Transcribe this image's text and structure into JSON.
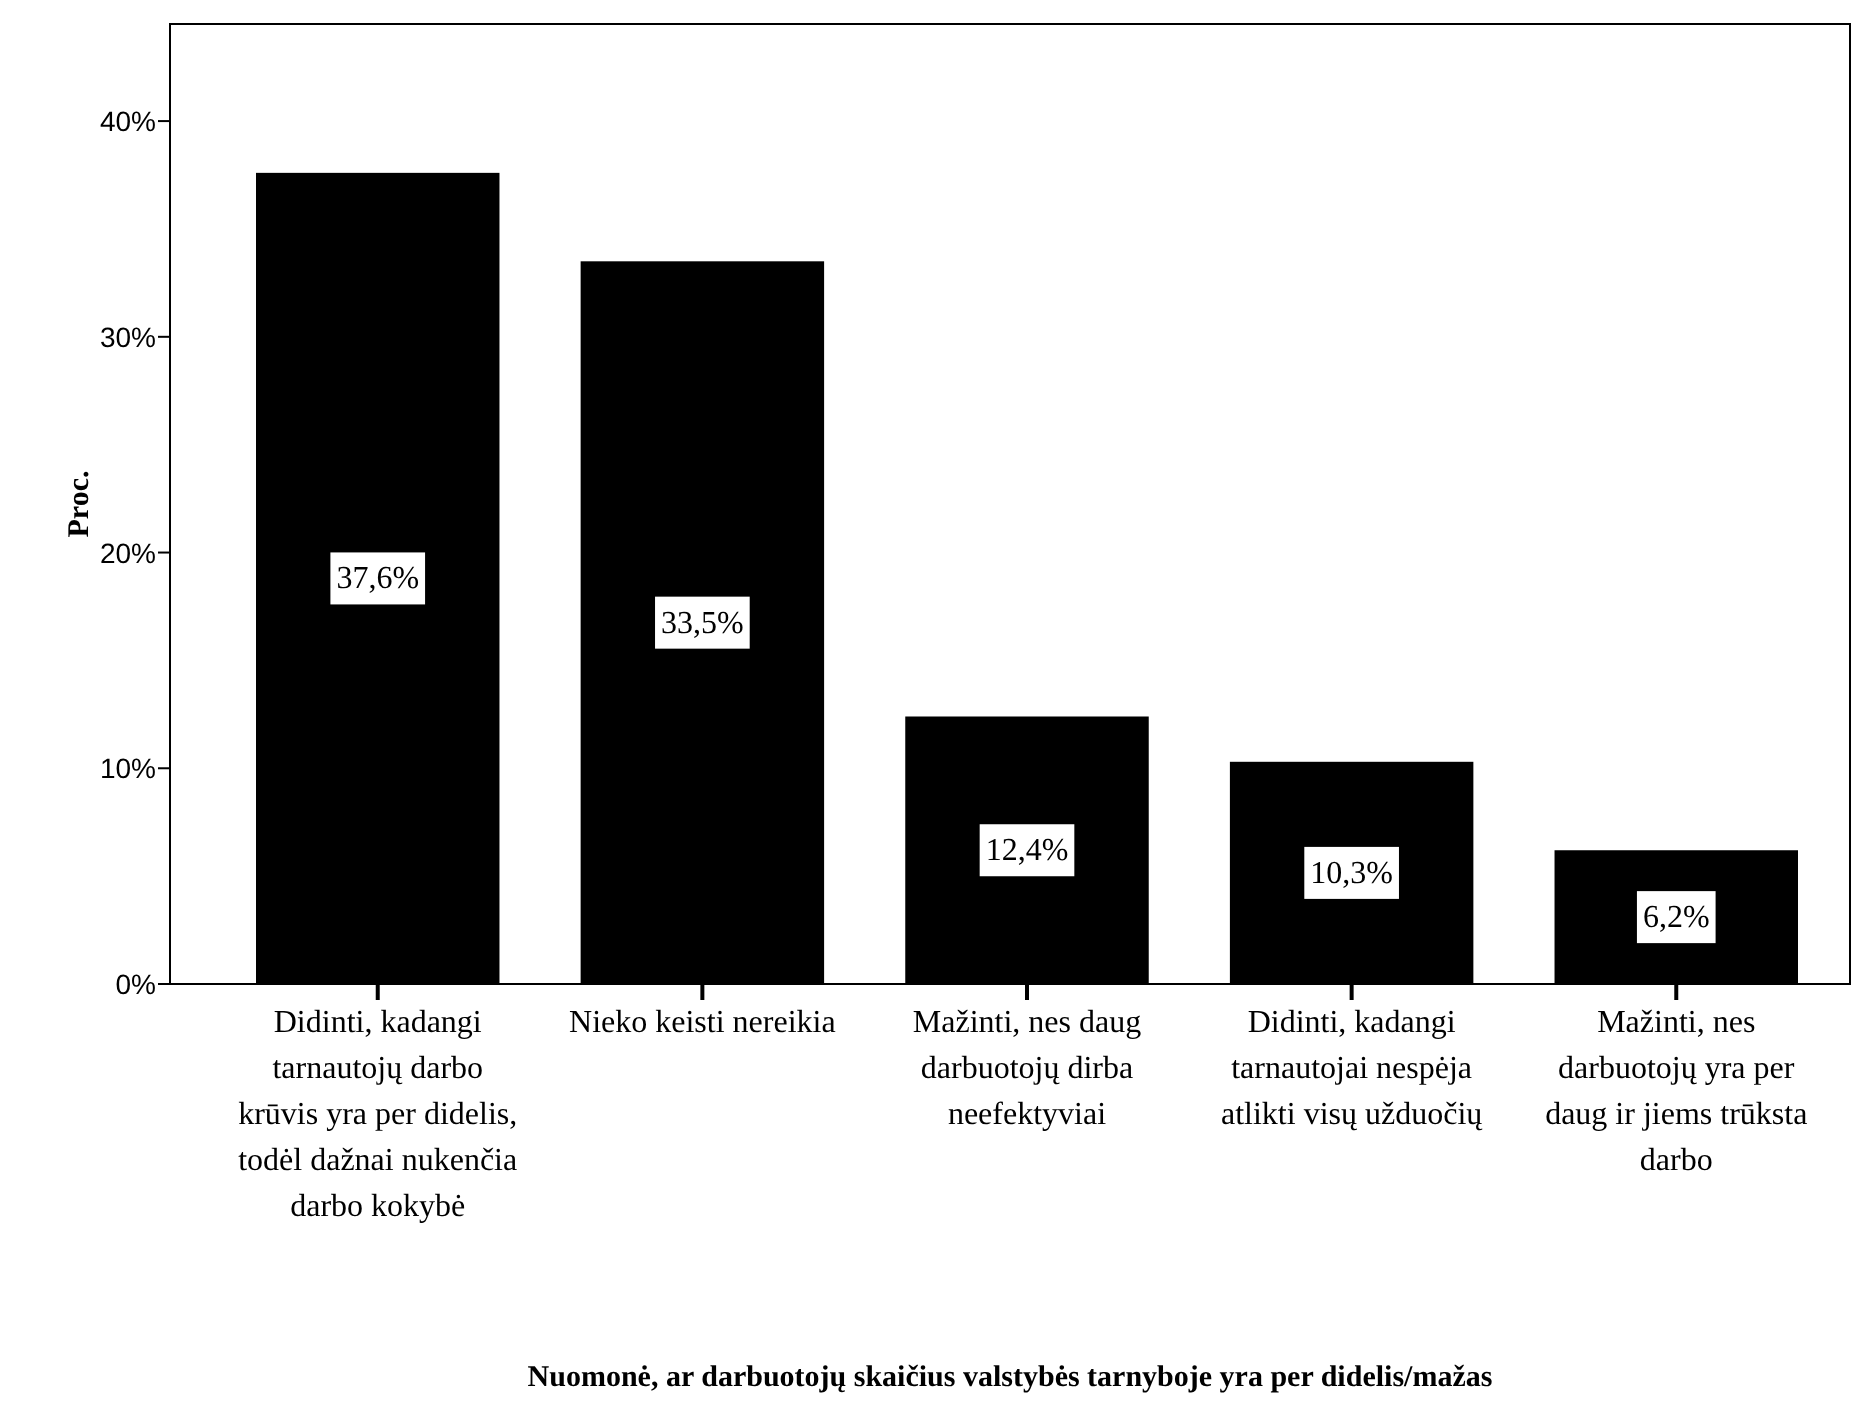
{
  "chart_data": {
    "type": "bar",
    "xlabel": "Nuomonė, ar darbuotojų skaičius valstybės tarnyboje yra per didelis/mažas",
    "ylabel": "Proc.",
    "categories": [
      "Didinti, kadangi tarnautojų darbo krūvis yra per didelis, todėl dažnai nukenčia darbo kokybė",
      "Nieko keisti nereikia",
      "Mažinti, nes daug darbuotojų dirba neefektyviai",
      "Didinti, kadangi tarnautojai nespėja atlikti visų užduočių",
      "Mažinti, nes darbuotojų yra per daug ir jiems trūksta darbo"
    ],
    "values": [
      37.6,
      33.5,
      12.4,
      10.3,
      6.2
    ],
    "value_labels": [
      "37,6%",
      "33,5%",
      "12,4%",
      "10,3%",
      "6,2%"
    ],
    "color": "#000000",
    "ylim": [
      0,
      44.5
    ],
    "yticks": [
      {
        "value": 0,
        "label": "0%"
      },
      {
        "value": 10,
        "label": "10%"
      },
      {
        "value": 20,
        "label": "20%"
      },
      {
        "value": 30,
        "label": "30%"
      },
      {
        "value": 40,
        "label": "40%"
      }
    ],
    "grid": false
  }
}
